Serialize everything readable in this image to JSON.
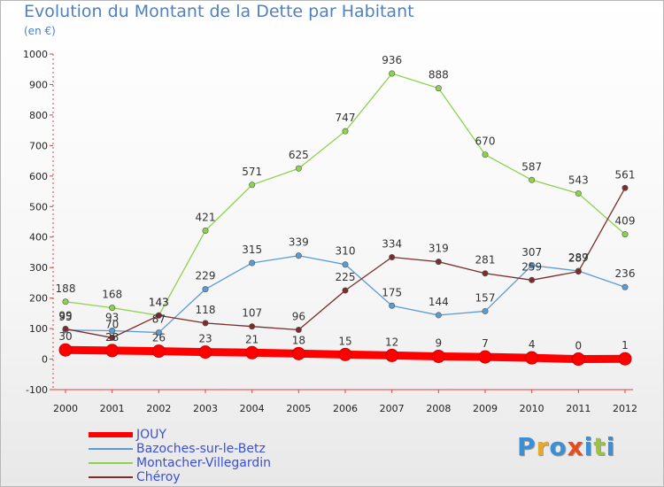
{
  "header": {
    "title": "Evolution du Montant de la Dette par Habitant",
    "subtitle": "(en €)"
  },
  "logo": {
    "letters": [
      "P",
      "r",
      "o",
      "x",
      "i",
      "t",
      "i"
    ],
    "colors": [
      "#3a8fd6",
      "#e8a82c",
      "#3a8fd6",
      "#e84c1c",
      "#3a8fd6",
      "#9ac43c",
      "#3a8fd6"
    ]
  },
  "chart_data": {
    "type": "line",
    "title": "Evolution du Montant de la Dette par Habitant",
    "subtitle": "(en €)",
    "xlabel": "",
    "ylabel": "",
    "ylim": [
      -100,
      1000
    ],
    "yticks": [
      -100,
      0,
      100,
      200,
      300,
      400,
      500,
      600,
      700,
      800,
      900,
      1000
    ],
    "categories": [
      "2000",
      "2001",
      "2002",
      "2003",
      "2004",
      "2005",
      "2006",
      "2007",
      "2008",
      "2009",
      "2010",
      "2011",
      "2012"
    ],
    "grid": false,
    "legend_position": "bottom-left",
    "series": [
      {
        "name": "JOUY",
        "color": "#ff0000",
        "style": "thick",
        "values": [
          30,
          28,
          26,
          23,
          21,
          18,
          15,
          12,
          9,
          7,
          4,
          0,
          1
        ]
      },
      {
        "name": "Bazoches-sur-le-Betz",
        "color": "#5b9bd5",
        "style": "thin",
        "values": [
          95,
          93,
          87,
          229,
          315,
          339,
          310,
          175,
          144,
          157,
          307,
          289,
          236
        ]
      },
      {
        "name": "Montacher-Villegardin",
        "color": "#8fd14f",
        "style": "thin",
        "values": [
          188,
          168,
          143,
          421,
          571,
          625,
          747,
          936,
          888,
          670,
          587,
          543,
          409
        ]
      },
      {
        "name": "Chéroy",
        "color": "#7b2c2c",
        "style": "thin",
        "values": [
          99,
          70,
          143,
          118,
          107,
          96,
          225,
          334,
          319,
          281,
          259,
          287,
          561
        ]
      }
    ]
  }
}
